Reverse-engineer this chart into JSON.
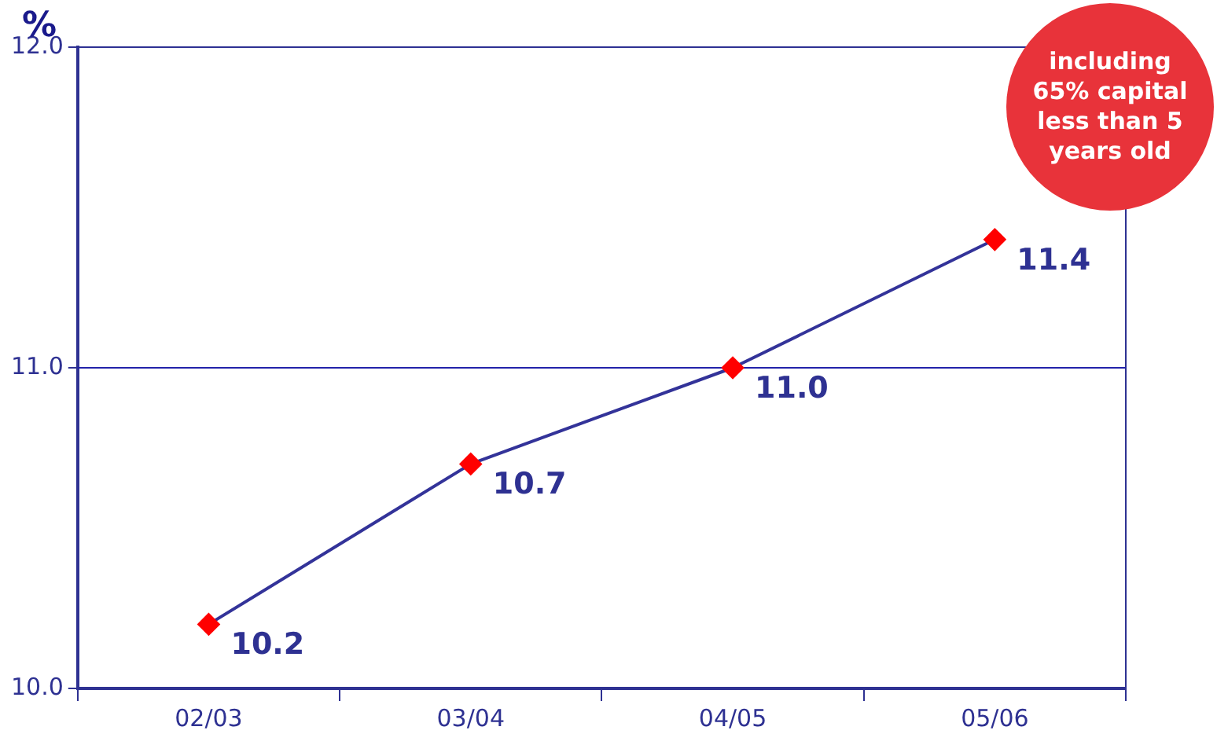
{
  "chart_data": {
    "type": "line",
    "ylabel": "%",
    "categories": [
      "02/03",
      "03/04",
      "04/05",
      "05/06"
    ],
    "series": [
      {
        "color": "#333399",
        "colors": [
          "#ff0000",
          "#ff0000",
          "#ff0000",
          "#ff0000"
        ],
        "values": [
          10.2,
          10.7,
          11.0,
          11.4
        ]
      }
    ],
    "value_labels": [
      "10.2",
      "10.7",
      "11.0",
      "11.4"
    ],
    "ylim": [
      10,
      12
    ],
    "yticks": [
      {
        "value": 10,
        "label": "10.0"
      },
      {
        "value": 11,
        "label": "11.0"
      },
      {
        "value": 12,
        "label": "12.0"
      }
    ],
    "ref_lines": [
      {
        "axis": "y",
        "value": 11,
        "color": "#2222aa"
      }
    ],
    "marker": "diamond",
    "legend": false,
    "annotations": [
      "including 65% capital less than 5 years old"
    ]
  }
}
